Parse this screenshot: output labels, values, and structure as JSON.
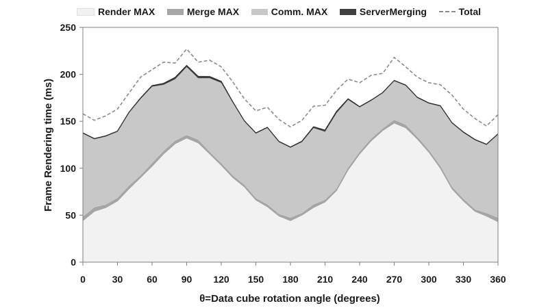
{
  "chart_data": {
    "type": "area",
    "stacked": true,
    "title": "",
    "xlabel": "θ=Data cube rotation angle (degrees)",
    "ylabel": "Frame Rendering time (ms)",
    "xlim": [
      0,
      360
    ],
    "ylim": [
      0,
      250
    ],
    "xticks": [
      0,
      30,
      60,
      90,
      120,
      150,
      180,
      210,
      240,
      270,
      300,
      330,
      360
    ],
    "yticks": [
      0,
      50,
      100,
      150,
      200,
      250
    ],
    "grid": false,
    "legend_position": "top",
    "x": [
      0,
      10,
      20,
      30,
      40,
      50,
      60,
      70,
      80,
      90,
      100,
      110,
      120,
      130,
      140,
      150,
      160,
      170,
      180,
      190,
      200,
      210,
      220,
      230,
      240,
      250,
      260,
      270,
      280,
      290,
      300,
      310,
      320,
      330,
      340,
      350,
      360
    ],
    "series": [
      {
        "name": "Render MAX",
        "color": "#f2f2f2",
        "values": [
          44,
          54,
          58,
          65,
          78,
          90,
          102,
          115,
          126,
          132,
          127,
          115,
          103,
          90,
          80,
          66,
          59,
          49,
          44,
          50,
          58,
          64,
          76,
          98,
          115,
          129,
          140,
          148,
          143,
          131,
          117,
          100,
          78,
          65,
          54,
          49,
          43
        ]
      },
      {
        "name": "Merge MAX",
        "color": "#a6a6a6",
        "values": [
          4,
          4,
          3,
          3,
          3,
          2,
          3,
          3,
          3,
          3,
          3,
          2,
          2,
          2,
          2,
          2,
          2,
          2,
          3,
          2,
          3,
          2,
          2,
          2,
          2,
          2,
          2,
          3,
          3,
          2,
          2,
          2,
          2,
          2,
          2,
          3,
          4
        ]
      },
      {
        "name": "Comm. MAX",
        "color": "#c8c8c8",
        "values": [
          89,
          73,
          73,
          71,
          78,
          82,
          82,
          71,
          66,
          73,
          66,
          79,
          86,
          78,
          68,
          69,
          82,
          77,
          75,
          76,
          82,
          73,
          81,
          73,
          48,
          41,
          38,
          42,
          42,
          42,
          50,
          64,
          68,
          71,
          74,
          73,
          89
        ]
      },
      {
        "name": "ServerMerging",
        "color": "#3f3f3f",
        "values": [
          0.6,
          0.6,
          0.6,
          0.6,
          0.6,
          0.8,
          1.0,
          1.4,
          1.8,
          1.5,
          1.8,
          1.6,
          1.6,
          0.8,
          0.6,
          0.6,
          0.6,
          0.6,
          0.6,
          0.8,
          1.2,
          1.6,
          1.6,
          1.0,
          0.6,
          0.6,
          0.6,
          0.6,
          0.6,
          0.6,
          0.6,
          0.6,
          0.6,
          0.6,
          0.6,
          0.6,
          0.6
        ]
      },
      {
        "name": "Total",
        "color": "#8a8a8a",
        "style": "dashed",
        "values": [
          158,
          151,
          156,
          163,
          180,
          197,
          205,
          213,
          212,
          227,
          213,
          215,
          208,
          192,
          174,
          161,
          165,
          152,
          144,
          151,
          166,
          167,
          183,
          195,
          191,
          199,
          201,
          218,
          208,
          197,
          191,
          189,
          178,
          163,
          153,
          145,
          157
        ]
      }
    ]
  },
  "colors": {
    "axis": "#7f7f7f",
    "text": "#1a1a1a"
  }
}
